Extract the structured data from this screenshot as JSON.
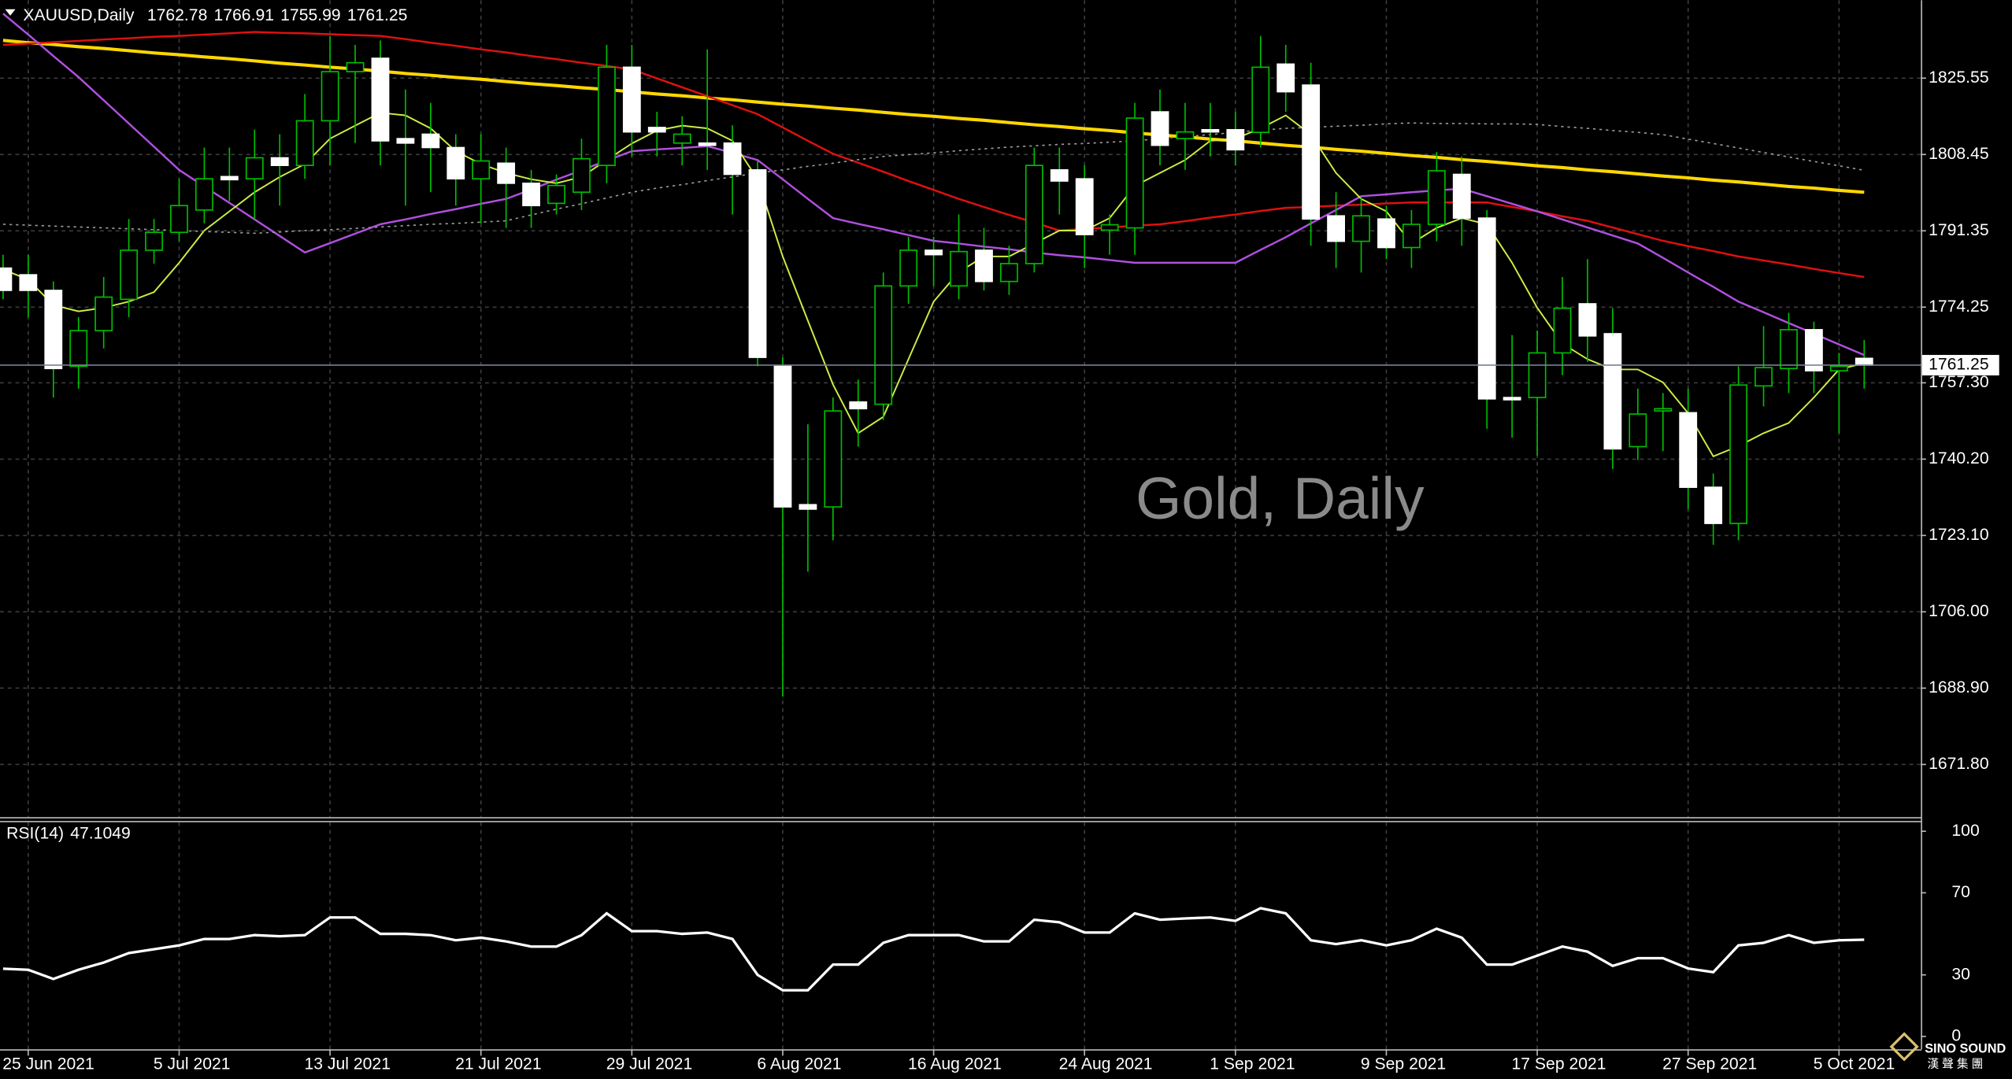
{
  "chart_data": [
    {
      "type": "candlestick",
      "title": "XAUUSD,Daily",
      "watermark": "Gold, Daily",
      "categories": [
        null,
        "25 Jun 2021",
        null,
        null,
        null,
        null,
        null,
        "5 Jul 2021",
        null,
        null,
        null,
        null,
        null,
        "13 Jul 2021",
        null,
        null,
        null,
        null,
        null,
        "21 Jul 2021",
        null,
        null,
        null,
        null,
        null,
        "29 Jul 2021",
        null,
        null,
        null,
        null,
        null,
        "6 Aug 2021",
        null,
        null,
        null,
        null,
        null,
        "16 Aug 2021",
        null,
        null,
        null,
        null,
        null,
        "24 Aug 2021",
        null,
        null,
        null,
        null,
        null,
        "1 Sep 2021",
        null,
        null,
        null,
        null,
        null,
        "9 Sep 2021",
        null,
        null,
        null,
        null,
        null,
        "17 Sep 2021",
        null,
        null,
        null,
        null,
        null,
        "27 Sep 2021",
        null,
        null,
        null,
        null,
        null,
        "5 Oct 2021",
        null
      ],
      "open": [
        1783,
        1781.5,
        1778,
        1761,
        1769,
        1776,
        1787,
        1791,
        1796,
        1803.5,
        1803,
        1807.7,
        1806,
        1816,
        1827,
        1830,
        1812,
        1813,
        1810,
        1803,
        1806.5,
        1802,
        1797.5,
        1800,
        1806,
        1828,
        1814.5,
        1811,
        1811,
        1811,
        1805,
        1761,
        1730,
        1729.5,
        1753,
        1752.5,
        1779,
        1787,
        1779,
        1787,
        1780,
        1784,
        1805,
        1803,
        1791.5,
        1792,
        1818,
        1812,
        1814,
        1814,
        1813.4,
        1828.7,
        1824,
        1794.7,
        1789,
        1794,
        1787.6,
        1792.8,
        1804,
        1794.2,
        1754,
        1754,
        1764,
        1775,
        1768.3,
        1743,
        1751,
        1750.6,
        1733.9,
        1725.8,
        1756.6,
        1760.5,
        1769.2,
        1760,
        1762.78
      ],
      "high": [
        1786,
        1786,
        1780,
        1772,
        1781,
        1794,
        1794,
        1803,
        1810,
        1810,
        1814,
        1813,
        1822,
        1835,
        1833,
        1834,
        1823,
        1820,
        1813,
        1813,
        1810,
        1805,
        1804,
        1812,
        1833,
        1833,
        1818,
        1817,
        1832,
        1815,
        1807,
        1763,
        1748,
        1754,
        1758,
        1782,
        1790,
        1790,
        1795,
        1792,
        1788,
        1810,
        1810,
        1806,
        1795,
        1820,
        1823,
        1820,
        1820,
        1818,
        1835,
        1833,
        1829,
        1800,
        1799,
        1797,
        1796,
        1809,
        1808,
        1796,
        1768,
        1769,
        1781,
        1785,
        1774,
        1756,
        1755,
        1756,
        1737,
        1761,
        1770,
        1773,
        1771,
        1764,
        1766.91
      ],
      "low": [
        1776,
        1772,
        1754,
        1756,
        1765,
        1772,
        1784,
        1789,
        1793,
        1798,
        1794,
        1797,
        1803,
        1806,
        1811,
        1806,
        1797,
        1800,
        1797,
        1793,
        1792,
        1792,
        1795,
        1796,
        1802,
        1808,
        1808,
        1806,
        1805,
        1795,
        1761,
        1687,
        1715,
        1722,
        1743,
        1749,
        1775,
        1779,
        1776,
        1778,
        1777,
        1782,
        1795,
        1783,
        1786,
        1786,
        1806,
        1805,
        1808,
        1806,
        1810,
        1818,
        1788,
        1783,
        1782,
        1785,
        1783,
        1789,
        1788,
        1747,
        1745,
        1741,
        1759,
        1762,
        1738,
        1740,
        1742,
        1729,
        1721,
        1722,
        1752,
        1755,
        1755,
        1746,
        1755.99
      ],
      "close": [
        1778,
        1778,
        1760.5,
        1769,
        1776.5,
        1787,
        1791,
        1797,
        1803,
        1802.8,
        1807.7,
        1806,
        1816,
        1827,
        1829,
        1811.5,
        1811,
        1810,
        1803,
        1807,
        1802,
        1797,
        1801.5,
        1807.5,
        1828,
        1813.5,
        1813.5,
        1813,
        1810.5,
        1804,
        1763,
        1729.5,
        1729,
        1751,
        1751.5,
        1779,
        1787,
        1786,
        1786.7,
        1780,
        1784,
        1806,
        1802.5,
        1790.5,
        1792.7,
        1816.6,
        1810.5,
        1813.5,
        1813.5,
        1809.5,
        1828,
        1822.5,
        1794,
        1789,
        1794.7,
        1787.6,
        1792.8,
        1804.8,
        1794.2,
        1753.7,
        1753.5,
        1764,
        1774,
        1767.8,
        1742.5,
        1750.3,
        1751.5,
        1733.9,
        1725.8,
        1756.8,
        1760.7,
        1769.2,
        1760,
        1761,
        1761.25
      ],
      "up_color": "#000000",
      "down_color": "#ffffff",
      "wick_color": "#00c000",
      "last_price_color": "#7a7f96",
      "overlays": [
        {
          "color": "#ffd700",
          "width": 2.5,
          "style": "solid",
          "values": [
            1834.0,
            1833.5,
            1833.1,
            1832.6,
            1832.2,
            1831.7,
            1831.2,
            1830.8,
            1830.3,
            1829.9,
            1829.4,
            1828.9,
            1828.5,
            1828.0,
            1827.6,
            1827.1,
            1826.6,
            1826.2,
            1825.7,
            1825.3,
            1824.8,
            1824.3,
            1823.9,
            1823.4,
            1823.0,
            1822.5,
            1822.0,
            1821.6,
            1821.1,
            1820.7,
            1820.2,
            1819.7,
            1819.3,
            1818.8,
            1818.4,
            1817.9,
            1817.4,
            1817.0,
            1816.5,
            1816.1,
            1815.6,
            1815.1,
            1814.7,
            1814.2,
            1813.8,
            1813.3,
            1812.8,
            1812.4,
            1811.9,
            1811.5,
            1811.0,
            1810.5,
            1810.1,
            1809.6,
            1809.2,
            1808.7,
            1808.2,
            1807.8,
            1807.3,
            1806.9,
            1806.4,
            1805.9,
            1805.5,
            1805.0,
            1804.6,
            1804.1,
            1803.6,
            1803.2,
            1802.7,
            1802.3,
            1801.8,
            1801.3,
            1800.9,
            1800.4,
            1800.0
          ]
        },
        {
          "color": "#e01010",
          "width": 1.5,
          "style": "solid",
          "values": [
            1833.0,
            1833.3,
            1833.6,
            1833.9,
            1834.2,
            1834.5,
            1834.8,
            1835.0,
            1835.3,
            1835.6,
            1835.9,
            1835.7,
            1835.6,
            1835.4,
            1835.2,
            1835.0,
            1834.3,
            1833.5,
            1832.8,
            1832.0,
            1831.3,
            1830.5,
            1829.8,
            1829.0,
            1828.3,
            1827.5,
            1825.5,
            1823.5,
            1821.5,
            1819.5,
            1817.5,
            1814.5,
            1811.5,
            1808.6,
            1806.6,
            1804.6,
            1802.5,
            1800.5,
            1798.5,
            1796.7,
            1794.9,
            1793.2,
            1791.4,
            1791.8,
            1792.1,
            1792.5,
            1792.8,
            1793.5,
            1794.3,
            1795.0,
            1795.8,
            1796.5,
            1796.7,
            1797.0,
            1797.2,
            1797.5,
            1797.7,
            1797.7,
            1797.7,
            1797.7,
            1796.7,
            1795.7,
            1794.6,
            1793.6,
            1792.1,
            1790.6,
            1789.1,
            1787.9,
            1786.8,
            1785.6,
            1784.7,
            1783.8,
            1782.8,
            1781.9,
            1781.0
          ]
        },
        {
          "color": "#b050e0",
          "width": 1.5,
          "style": "solid",
          "values": [
            1840.0,
            1835.3,
            1830.5,
            1825.8,
            1820.6,
            1815.4,
            1810.2,
            1805.0,
            1801.3,
            1797.6,
            1793.9,
            1790.2,
            1786.5,
            1788.6,
            1790.7,
            1792.8,
            1793.9,
            1795.1,
            1796.2,
            1797.4,
            1798.5,
            1800.6,
            1802.8,
            1804.9,
            1807.1,
            1809.2,
            1809.6,
            1809.9,
            1810.3,
            1808.8,
            1807.2,
            1802.9,
            1798.5,
            1794.2,
            1792.9,
            1791.7,
            1790.4,
            1789.1,
            1788.5,
            1787.8,
            1787.2,
            1786.5,
            1785.9,
            1785.4,
            1784.8,
            1784.2,
            1784.2,
            1784.2,
            1784.2,
            1784.2,
            1787.1,
            1789.9,
            1793.0,
            1796.0,
            1799.1,
            1799.5,
            1800.0,
            1800.4,
            1800.8,
            1799.1,
            1797.4,
            1795.7,
            1793.9,
            1792.1,
            1790.3,
            1788.5,
            1785.3,
            1782.0,
            1778.8,
            1775.5,
            1773.1,
            1770.7,
            1768.3,
            1765.9,
            1763.5
          ]
        },
        {
          "color": "#ccee44",
          "width": 1.2,
          "style": "solid",
          "values": [
            1782.7,
            1780.4,
            1774.7,
            1773.3,
            1774.1,
            1775.5,
            1777.6,
            1784.2,
            1791.4,
            1795.7,
            1800,
            1803.4,
            1806.3,
            1812,
            1814.9,
            1817.8,
            1817.2,
            1814.3,
            1809.2,
            1806.3,
            1804.3,
            1802.9,
            1802,
            1803.4,
            1807.2,
            1810.9,
            1813.8,
            1814.9,
            1814.3,
            1811.5,
            1802.9,
            1785.6,
            1771.2,
            1756.9,
            1746,
            1749.7,
            1762.6,
            1775.5,
            1782.1,
            1785.6,
            1785.6,
            1788.5,
            1791.4,
            1791.4,
            1794.2,
            1801.4,
            1804.3,
            1807.2,
            1811.5,
            1812,
            1814.3,
            1817.2,
            1812.9,
            1804.3,
            1798.5,
            1795.7,
            1788.5,
            1792,
            1794.2,
            1792.8,
            1784.2,
            1774.1,
            1766.1,
            1762.6,
            1760.3,
            1760.3,
            1757.4,
            1750.5,
            1740.8,
            1743.1,
            1746,
            1748.3,
            1754,
            1760.3,
            1761.7
          ]
        },
        {
          "color": "#9a9a9a",
          "width": 1,
          "style": "dotted",
          "values": [
            1792.8,
            1792.6,
            1792.4,
            1792.2,
            1792.0,
            1791.8,
            1791.6,
            1791.4,
            1791.2,
            1791.0,
            1790.8,
            1791.1,
            1791.4,
            1791.6,
            1791.9,
            1792.2,
            1792.5,
            1792.8,
            1793.0,
            1793.3,
            1793.6,
            1794.9,
            1796.2,
            1797.4,
            1798.7,
            1800.0,
            1800.9,
            1801.7,
            1802.6,
            1803.4,
            1804.3,
            1805.0,
            1805.8,
            1806.5,
            1807.3,
            1808.0,
            1808.4,
            1808.8,
            1809.3,
            1809.7,
            1810.1,
            1810.4,
            1810.7,
            1810.9,
            1811.2,
            1811.5,
            1812.0,
            1812.5,
            1812.9,
            1813.4,
            1813.9,
            1814.3,
            1814.5,
            1814.8,
            1815.0,
            1815.3,
            1815.5,
            1815.4,
            1815.4,
            1815.3,
            1815.3,
            1815.2,
            1814.7,
            1814.3,
            1813.8,
            1813.4,
            1812.9,
            1811.9,
            1810.9,
            1809.9,
            1808.9,
            1807.9,
            1806.9,
            1805.9,
            1804.9
          ]
        }
      ],
      "ylim": [
        1660,
        1843
      ],
      "yticks": [
        1825.55,
        1808.45,
        1791.35,
        1774.25,
        {
          "value": 1757.3,
          "label": "1757.30"
        },
        {
          "value": 1740.2,
          "label": "1740.20"
        },
        {
          "value": 1723.1,
          "label": "1723.10"
        },
        {
          "value": 1706,
          "label": "1706.00"
        },
        {
          "value": 1688.9,
          "label": "1688.90"
        },
        {
          "value": 1671.8,
          "label": "1671.80"
        }
      ],
      "grid": true
    },
    {
      "type": "line",
      "title": "RSI(14)",
      "color": "#ffffff",
      "values": [
        33,
        32.5,
        28,
        32.5,
        36,
        40.6,
        42.5,
        44.4,
        47.5,
        47.5,
        49.4,
        48.8,
        49.4,
        58,
        58,
        50,
        50,
        49.4,
        46.9,
        48.1,
        46.3,
        43.8,
        43.8,
        49.4,
        60,
        51.3,
        51.3,
        50,
        50.6,
        47.5,
        30,
        22.5,
        22.5,
        35,
        35,
        45.6,
        49.4,
        49.4,
        49.4,
        46.3,
        46.3,
        56.9,
        55.6,
        50.6,
        50.6,
        60,
        56.9,
        57.5,
        58,
        56.3,
        62.5,
        60,
        46.9,
        45,
        46.9,
        44.4,
        46.9,
        52.5,
        48.1,
        35,
        35,
        39.4,
        43.8,
        41.3,
        34.4,
        38.1,
        38.1,
        33.1,
        31.3,
        44.4,
        45.6,
        49.4,
        45.6,
        46.9,
        47.1049
      ],
      "ylim": [
        -6.25,
        105
      ],
      "yticks": [
        100,
        70,
        30,
        0
      ],
      "grid": false
    }
  ],
  "logo": {
    "name": "SINO SOUND",
    "subtitle": "漢 聲 集 團"
  }
}
